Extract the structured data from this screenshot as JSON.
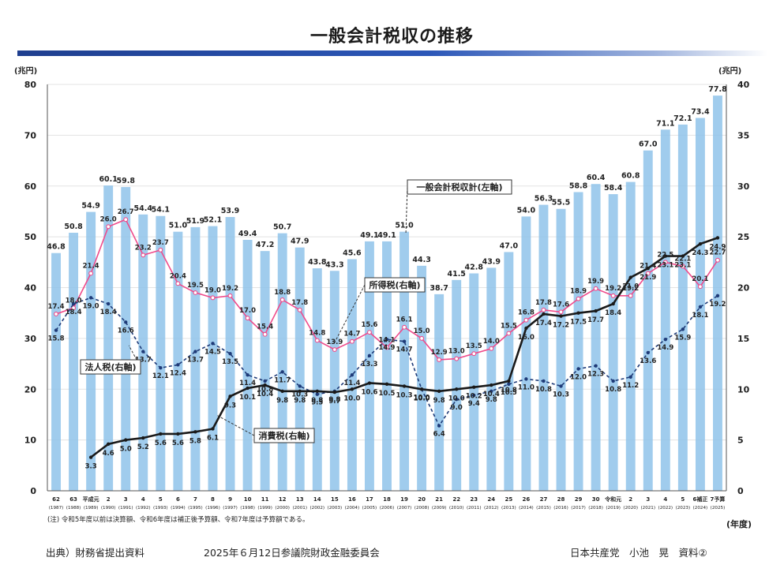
{
  "page": {
    "title": "一般会計税収の推移",
    "source": "出典）財務省提出資料",
    "meeting": "2025年６月12日参議院財政金融委員会",
    "author": "日本共産党　小池　晃　資料②"
  },
  "colors": {
    "bar": "#8fc3ea",
    "income_tax": "#ef4b8b",
    "corporate_tax": "#1f3b78",
    "consumption_tax": "#1a1a1a",
    "title_bar": "#1f3f8f"
  },
  "chart_data": {
    "type": "bar",
    "note": "(注) 令和5年度以前は決算額、令和6年度は補正後予算額、令和7年度は予算額である。",
    "ylabel_left": "(兆円)",
    "ylabel_right": "(兆円)",
    "xlabel": "(年度)",
    "ylim_left": [
      0,
      80
    ],
    "ylim_right": [
      0,
      40
    ],
    "yticks_left": [
      "0",
      "10",
      "20",
      "30",
      "40",
      "50",
      "60",
      "70",
      "80"
    ],
    "yticks_right": [
      "0",
      "5",
      "10",
      "15",
      "20",
      "25",
      "30",
      "35",
      "40"
    ],
    "categories": [
      "62",
      "63",
      "平成元",
      "2",
      "3",
      "4",
      "5",
      "6",
      "7",
      "8",
      "9",
      "10",
      "11",
      "12",
      "13",
      "14",
      "15",
      "16",
      "17",
      "18",
      "19",
      "20",
      "21",
      "22",
      "23",
      "24",
      "25",
      "26",
      "27",
      "28",
      "29",
      "30",
      "令和元",
      "2",
      "3",
      "4",
      "5",
      "6補正",
      "7予算"
    ],
    "category_years": [
      "(1987)",
      "(1988)",
      "(1989)",
      "(1990)",
      "(1991)",
      "(1992)",
      "(1993)",
      "(1994)",
      "(1995)",
      "(1996)",
      "(1997)",
      "(1998)",
      "(1999)",
      "(2000)",
      "(2001)",
      "(2002)",
      "(2003)",
      "(2004)",
      "(2005)",
      "(2006)",
      "(2007)",
      "(2008)",
      "(2009)",
      "(2010)",
      "(2011)",
      "(2012)",
      "(2013)",
      "(2014)",
      "(2015)",
      "(2016)",
      "(2017)",
      "(2018)",
      "(2019)",
      "(2020)",
      "(2021)",
      "(2022)",
      "(2023)",
      "(2024)",
      "(2025)"
    ],
    "series": [
      {
        "name": "一般会計税収計(左軸)",
        "axis": "left",
        "type": "bar",
        "values": [
          46.8,
          50.8,
          54.9,
          60.1,
          59.8,
          54.4,
          54.1,
          51.0,
          51.9,
          52.1,
          53.9,
          49.4,
          47.2,
          50.7,
          47.9,
          43.8,
          43.3,
          45.6,
          49.1,
          49.1,
          51.0,
          44.3,
          38.7,
          41.5,
          42.8,
          43.9,
          47.0,
          54.0,
          56.3,
          55.5,
          58.8,
          60.4,
          58.4,
          60.8,
          67.0,
          71.1,
          72.1,
          73.4,
          77.8
        ]
      },
      {
        "name": "所得税(右軸)",
        "axis": "right",
        "type": "line",
        "values": [
          17.4,
          18.0,
          21.4,
          26.0,
          26.7,
          23.2,
          23.7,
          20.4,
          19.5,
          19.0,
          19.2,
          17.0,
          15.4,
          18.8,
          17.8,
          14.8,
          13.9,
          14.7,
          15.6,
          14.1,
          16.1,
          15.0,
          12.9,
          13.0,
          13.5,
          14.0,
          15.5,
          16.8,
          17.8,
          17.6,
          18.9,
          19.9,
          19.2,
          19.2,
          21.4,
          22.5,
          22.1,
          20.1,
          22.7
        ]
      },
      {
        "name": "法人税(右軸)",
        "axis": "right",
        "type": "line",
        "values": [
          15.8,
          18.4,
          19.0,
          18.4,
          16.6,
          13.7,
          12.1,
          12.4,
          13.7,
          14.5,
          13.5,
          11.4,
          10.8,
          11.7,
          10.3,
          9.5,
          9.8,
          11.4,
          13.3,
          14.9,
          14.7,
          10.0,
          6.4,
          9.0,
          9.4,
          9.8,
          10.5,
          11.0,
          10.8,
          10.3,
          12.0,
          12.3,
          10.8,
          11.2,
          13.6,
          14.9,
          15.9,
          18.1,
          19.2
        ]
      },
      {
        "name": "消費税(右軸)",
        "axis": "right",
        "type": "line",
        "values": [
          null,
          null,
          3.3,
          4.6,
          5.0,
          5.2,
          5.6,
          5.6,
          5.8,
          6.1,
          9.3,
          10.1,
          10.4,
          9.8,
          9.8,
          9.8,
          9.7,
          10.0,
          10.6,
          10.5,
          10.3,
          10.0,
          9.8,
          10.0,
          10.2,
          10.4,
          10.8,
          16.0,
          17.4,
          17.2,
          17.5,
          17.7,
          18.4,
          21.0,
          21.9,
          23.1,
          23.1,
          24.3,
          24.9
        ]
      }
    ],
    "callouts": {
      "total": "一般会計税収計(左軸)",
      "income": "所得税(右軸)",
      "corporate": "法人税(右軸)",
      "consumption": "消費税(右軸)"
    }
  }
}
